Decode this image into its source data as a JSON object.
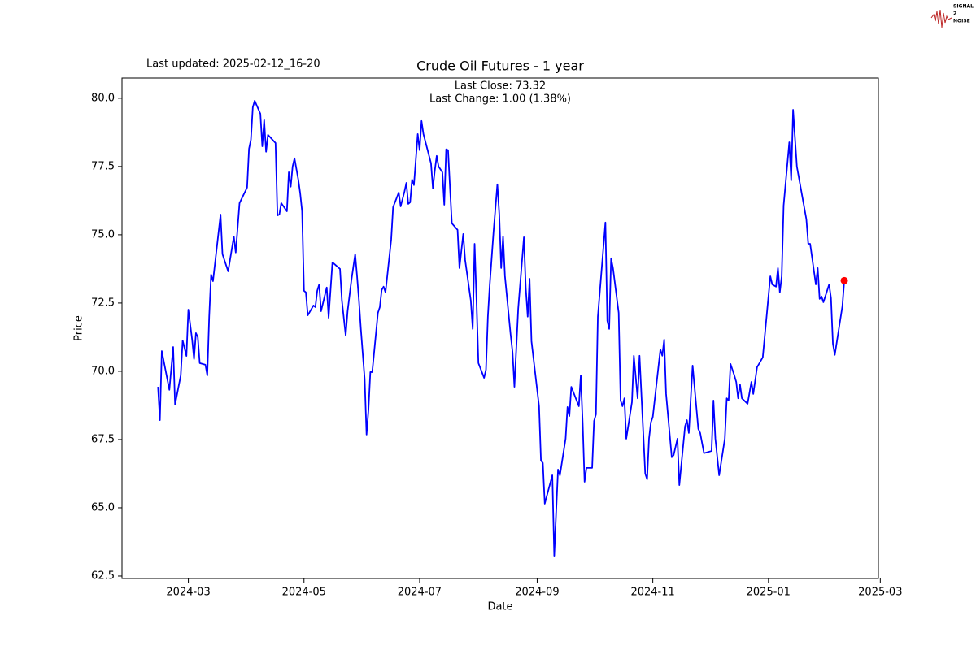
{
  "chart_data": {
    "type": "line",
    "title": "Crude Oil Futures - 1 year",
    "annotations": [
      "Last updated: 2025-02-12_16-20",
      "Last Close: 73.32",
      "Last Change: 1.00 (1.38%)"
    ],
    "logo": [
      "SIGNAL",
      "2",
      "NOISE"
    ],
    "x_label": "Date",
    "y_label": "Price",
    "xlim": [
      "2024-01-26",
      "2025-02-28"
    ],
    "ylim": [
      62.41,
      80.74
    ],
    "xticks": [
      {
        "value": "2024-03-01",
        "label": "2024-03"
      },
      {
        "value": "2024-05-01",
        "label": "2024-05"
      },
      {
        "value": "2024-07-01",
        "label": "2024-07"
      },
      {
        "value": "2024-09-01",
        "label": "2024-09"
      },
      {
        "value": "2024-11-01",
        "label": "2024-11"
      },
      {
        "value": "2025-01-01",
        "label": "2025-01"
      },
      {
        "value": "2025-03-01",
        "label": "2025-03"
      }
    ],
    "yticks": [
      62.5,
      {
        "value": 65,
        "label": "65.0"
      },
      67.5,
      {
        "value": 70,
        "label": "70.0"
      },
      72.5,
      {
        "value": 75,
        "label": "75.0"
      },
      77.5,
      {
        "value": 80,
        "label": "80.0"
      }
    ],
    "grid": false,
    "last_marker_color": "red",
    "x": [
      "2024-02-14",
      "2024-02-15",
      "2024-02-16",
      "2024-02-20",
      "2024-02-22",
      "2024-02-23",
      "2024-02-26",
      "2024-02-27",
      "2024-02-29",
      "2024-03-01",
      "2024-03-03",
      "2024-03-04",
      "2024-03-05",
      "2024-03-06",
      "2024-03-07",
      "2024-03-10",
      "2024-03-11",
      "2024-03-12",
      "2024-03-13",
      "2024-03-14",
      "2024-03-18",
      "2024-03-19",
      "2024-03-22",
      "2024-03-25",
      "2024-03-26",
      "2024-03-28",
      "2024-04-01",
      "2024-04-02",
      "2024-04-03",
      "2024-04-04",
      "2024-04-05",
      "2024-04-08",
      "2024-04-09",
      "2024-04-10",
      "2024-04-11",
      "2024-04-12",
      "2024-04-16",
      "2024-04-17",
      "2024-04-18",
      "2024-04-19",
      "2024-04-22",
      "2024-04-23",
      "2024-04-24",
      "2024-04-25",
      "2024-04-26",
      "2024-04-28",
      "2024-04-29",
      "2024-04-30",
      "2024-05-01",
      "2024-05-02",
      "2024-05-03",
      "2024-05-06",
      "2024-05-07",
      "2024-05-08",
      "2024-05-09",
      "2024-05-10",
      "2024-05-13",
      "2024-05-14",
      "2024-05-16",
      "2024-05-20",
      "2024-05-21",
      "2024-05-23",
      "2024-05-24",
      "2024-05-26",
      "2024-05-27",
      "2024-05-28",
      "2024-05-29",
      "2024-05-30",
      "2024-05-31",
      "2024-06-02",
      "2024-06-03",
      "2024-06-04",
      "2024-06-05",
      "2024-06-06",
      "2024-06-09",
      "2024-06-10",
      "2024-06-11",
      "2024-06-12",
      "2024-06-13",
      "2024-06-16",
      "2024-06-17",
      "2024-06-20",
      "2024-06-21",
      "2024-06-23",
      "2024-06-24",
      "2024-06-25",
      "2024-06-26",
      "2024-06-27",
      "2024-06-28",
      "2024-06-30",
      "2024-07-01",
      "2024-07-02",
      "2024-07-03",
      "2024-07-07",
      "2024-07-08",
      "2024-07-09",
      "2024-07-10",
      "2024-07-11",
      "2024-07-13",
      "2024-07-14",
      "2024-07-15",
      "2024-07-16",
      "2024-07-18",
      "2024-07-21",
      "2024-07-22",
      "2024-07-24",
      "2024-07-25",
      "2024-07-28",
      "2024-07-29",
      "2024-07-30",
      "2024-07-31",
      "2024-08-01",
      "2024-08-04",
      "2024-08-05",
      "2024-08-06",
      "2024-08-07",
      "2024-08-09",
      "2024-08-11",
      "2024-08-12",
      "2024-08-13",
      "2024-08-14",
      "2024-08-15",
      "2024-08-18",
      "2024-08-19",
      "2024-08-20",
      "2024-08-22",
      "2024-08-25",
      "2024-08-26",
      "2024-08-27",
      "2024-08-28",
      "2024-08-29",
      "2024-09-02",
      "2024-09-03",
      "2024-09-04",
      "2024-09-05",
      "2024-09-09",
      "2024-09-10",
      "2024-09-12",
      "2024-09-13",
      "2024-09-16",
      "2024-09-17",
      "2024-09-18",
      "2024-09-19",
      "2024-09-23",
      "2024-09-24",
      "2024-09-25",
      "2024-09-26",
      "2024-09-27",
      "2024-09-30",
      "2024-10-01",
      "2024-10-02",
      "2024-10-03",
      "2024-10-07",
      "2024-10-08",
      "2024-10-09",
      "2024-10-10",
      "2024-10-11",
      "2024-10-14",
      "2024-10-15",
      "2024-10-16",
      "2024-10-17",
      "2024-10-18",
      "2024-10-21",
      "2024-10-22",
      "2024-10-24",
      "2024-10-25",
      "2024-10-28",
      "2024-10-29",
      "2024-10-30",
      "2024-10-31",
      "2024-11-01",
      "2024-11-05",
      "2024-11-06",
      "2024-11-07",
      "2024-11-08",
      "2024-11-11",
      "2024-11-12",
      "2024-11-14",
      "2024-11-15",
      "2024-11-18",
      "2024-11-19",
      "2024-11-20",
      "2024-11-22",
      "2024-11-25",
      "2024-11-26",
      "2024-11-28",
      "2024-12-02",
      "2024-12-03",
      "2024-12-04",
      "2024-12-06",
      "2024-12-09",
      "2024-12-10",
      "2024-12-11",
      "2024-12-12",
      "2024-12-14",
      "2024-12-15",
      "2024-12-16",
      "2024-12-17",
      "2024-12-18",
      "2024-12-21",
      "2024-12-23",
      "2024-12-24",
      "2024-12-26",
      "2024-12-29",
      "2025-01-02",
      "2025-01-03",
      "2025-01-05",
      "2025-01-06",
      "2025-01-07",
      "2025-01-08",
      "2025-01-09",
      "2025-01-12",
      "2025-01-13",
      "2025-01-14",
      "2025-01-16",
      "2025-01-21",
      "2025-01-22",
      "2025-01-23",
      "2025-01-26",
      "2025-01-27",
      "2025-01-28",
      "2025-01-29",
      "2025-01-30",
      "2025-02-02",
      "2025-02-03",
      "2025-02-04",
      "2025-02-05",
      "2025-02-09",
      "2025-02-10"
    ],
    "series": [
      {
        "color": "blue",
        "values": [
          69.43,
          68.21,
          70.74,
          69.32,
          70.89,
          68.78,
          69.85,
          71.13,
          70.56,
          72.26,
          71.16,
          70.45,
          71.4,
          71.25,
          70.3,
          70.24,
          69.85,
          72.0,
          73.54,
          73.3,
          75.74,
          74.29,
          73.66,
          74.94,
          74.35,
          76.16,
          76.73,
          78.15,
          78.48,
          79.67,
          79.91,
          79.43,
          78.24,
          79.2,
          78.04,
          78.66,
          78.36,
          75.71,
          75.74,
          76.16,
          75.86,
          77.29,
          76.76,
          77.5,
          77.8,
          77.02,
          76.52,
          75.86,
          72.95,
          72.89,
          72.05,
          72.41,
          72.35,
          72.95,
          73.18,
          72.2,
          73.07,
          71.96,
          73.99,
          73.75,
          72.59,
          71.31,
          72.2,
          73.33,
          73.81,
          74.29,
          73.48,
          72.59,
          71.55,
          69.73,
          67.68,
          68.57,
          69.97,
          69.97,
          72.14,
          72.35,
          72.98,
          73.1,
          72.89,
          74.82,
          76.01,
          76.55,
          76.04,
          76.58,
          76.9,
          76.13,
          76.19,
          77.02,
          76.82,
          78.69,
          78.1,
          79.17,
          78.69,
          77.62,
          76.7,
          77.35,
          77.89,
          77.5,
          77.29,
          76.1,
          78.13,
          78.1,
          75.42,
          75.18,
          73.78,
          75.03,
          74.08,
          72.59,
          71.55,
          74.67,
          72.62,
          70.3,
          69.76,
          70.06,
          72.0,
          73.18,
          75.12,
          76.85,
          75.77,
          73.78,
          74.94,
          73.48,
          71.34,
          70.71,
          69.43,
          72.29,
          74.91,
          73.04,
          72.0,
          73.39,
          71.1,
          68.72,
          66.73,
          66.64,
          65.15,
          66.19,
          63.24,
          66.4,
          66.19,
          67.53,
          68.69,
          68.36,
          69.43,
          68.72,
          69.85,
          68.13,
          65.95,
          66.46,
          66.46,
          68.18,
          68.42,
          72.0,
          75.45,
          71.85,
          71.55,
          74.14,
          73.78,
          72.14,
          68.93,
          68.72,
          69.01,
          67.53,
          68.87,
          70.57,
          69.01,
          70.57,
          66.25,
          66.04,
          67.53,
          68.13,
          68.33,
          70.8,
          70.57,
          71.16,
          69.17,
          66.85,
          66.93,
          67.53,
          65.83,
          67.98,
          68.21,
          67.74,
          70.21,
          67.89,
          67.74,
          67.0,
          67.08,
          68.93,
          67.53,
          66.19,
          67.53,
          69.01,
          68.93,
          70.27,
          69.85,
          69.61,
          69.01,
          69.52,
          69.01,
          68.81,
          69.61,
          69.17,
          70.15,
          70.51,
          73.48,
          73.18,
          73.1,
          73.78,
          72.89,
          73.48,
          76.07,
          78.39,
          76.99,
          79.58,
          77.5,
          75.57,
          74.67,
          74.67,
          73.18,
          73.78,
          72.65,
          72.74,
          72.53,
          73.18,
          72.68,
          71.01,
          70.6,
          72.38,
          73.32
        ]
      }
    ]
  }
}
